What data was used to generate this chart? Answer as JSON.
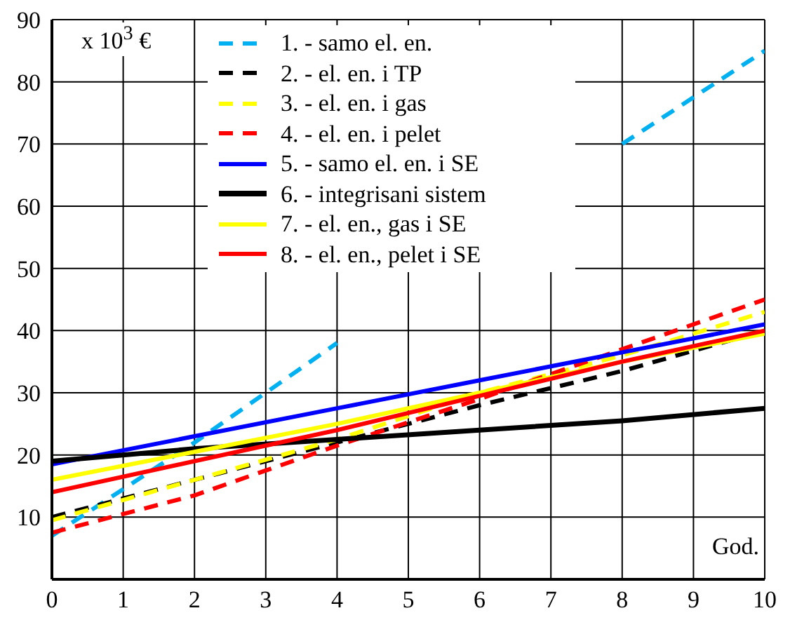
{
  "chart_data": {
    "type": "line",
    "xlabel": "God.",
    "annotations": [
      "x 10$^{3}$ €"
    ],
    "x": [
      0,
      2,
      4,
      6,
      8,
      10
    ],
    "xlim": [
      0,
      10
    ],
    "xticks": [
      0,
      1,
      2,
      3,
      4,
      5,
      6,
      7,
      8,
      9,
      10
    ],
    "ylim": [
      0,
      90
    ],
    "yticks": [
      10,
      20,
      30,
      40,
      50,
      60,
      70,
      80,
      90
    ],
    "grid": true,
    "legend": "top",
    "marker": "none",
    "series": [
      {
        "name": "1. - samo el. en.",
        "color": "#00b0f0",
        "line_style": "dashed",
        "x": [
          0,
          1,
          2,
          3,
          4,
          5,
          6,
          7,
          8,
          9,
          10
        ],
        "values": [
          7,
          14.5,
          22,
          30,
          38,
          null,
          null,
          null,
          70,
          77.5,
          85
        ]
      },
      {
        "name": "2. - el. en. i TP",
        "color": "#000000",
        "line_style": "dashed",
        "values": [
          10,
          16,
          22,
          28,
          33.5,
          40
        ]
      },
      {
        "name": "3. - el. en. i gas",
        "color": "#ffff00",
        "line_style": "dashed",
        "values": [
          9.5,
          16,
          22.5,
          30,
          36,
          43
        ]
      },
      {
        "name": "4. - el. en. i pelet",
        "color": "#ff0000",
        "line_style": "dashed",
        "values": [
          7.5,
          13.5,
          21.5,
          29,
          37,
          45
        ]
      },
      {
        "name": "5. - samo el. en. i SE",
        "color": "#0000ff",
        "line_style": "solid",
        "values": [
          18.5,
          23,
          27.5,
          32,
          36.5,
          41
        ]
      },
      {
        "name": "6. - integrisani sistem",
        "color": "#000000",
        "line_style": "solid",
        "values": [
          19,
          21,
          22.5,
          24,
          25.5,
          27.5
        ]
      },
      {
        "name": "7. - el. en., gas i SE",
        "color": "#ffff00",
        "line_style": "solid",
        "values": [
          16,
          20.5,
          25,
          30,
          35,
          39.5
        ]
      },
      {
        "name": "8. - el. en., pelet i SE",
        "color": "#ff0000",
        "line_style": "solid",
        "values": [
          14,
          19,
          24,
          29.5,
          35,
          40
        ]
      }
    ]
  }
}
